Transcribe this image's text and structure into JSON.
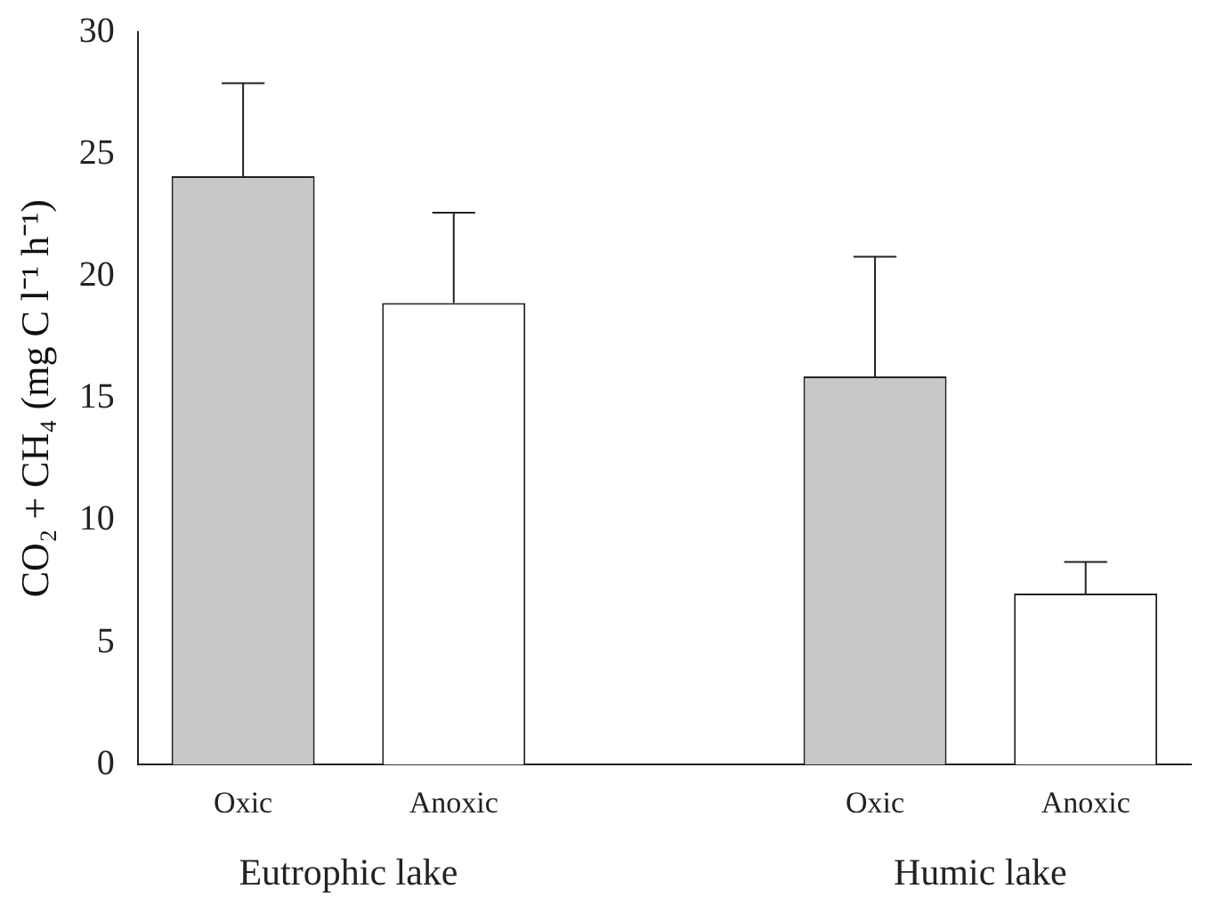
{
  "chart_data": {
    "type": "bar",
    "ylabel": "CO₂ + CH₄ (mg C l⁻¹ h⁻¹)",
    "categories": [
      "Oxic",
      "Anoxic",
      null,
      "Oxic",
      "Anoxic"
    ],
    "values": [
      24.1,
      18.9,
      null,
      15.9,
      7.0
    ],
    "colors": [
      "#c8c8c8",
      "#ffffff",
      null,
      "#c8c8c8",
      "#ffffff"
    ],
    "errors": [
      [
        24.1,
        27.9
      ],
      [
        18.9,
        22.6
      ],
      null,
      [
        15.9,
        20.8
      ],
      [
        7.0,
        8.3
      ]
    ],
    "ylim": [
      0,
      30
    ],
    "yticks": [
      0,
      5,
      10,
      15,
      20,
      25,
      30
    ],
    "grid": false,
    "legend": false,
    "annotations": [
      "Eutrophic lake",
      "Humic lake"
    ]
  }
}
